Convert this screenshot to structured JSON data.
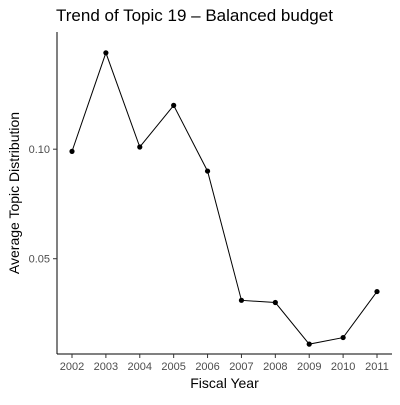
{
  "chart_data": {
    "type": "line",
    "title": "Trend of Topic 19 – Balanced budget",
    "xlabel": "Fiscal Year",
    "ylabel": "Average Topic Distribution",
    "x": [
      "2002",
      "2003",
      "2004",
      "2005",
      "2006",
      "2007",
      "2008",
      "2009",
      "2010",
      "2011"
    ],
    "series": [
      {
        "values": [
          0.099,
          0.144,
          0.101,
          0.12,
          0.09,
          0.031,
          0.03,
          0.011,
          0.014,
          0.035
        ]
      }
    ],
    "yticks": [
      0.05,
      0.1
    ],
    "ytick_labels": [
      "0.05",
      "0.10"
    ],
    "ylim": [
      0.0065,
      0.1535
    ],
    "grid": false,
    "legend": "none",
    "colors": {
      "line": "#000000",
      "points": "#000000",
      "axis": "#000000",
      "tick_label": "#4d4d4d"
    }
  }
}
